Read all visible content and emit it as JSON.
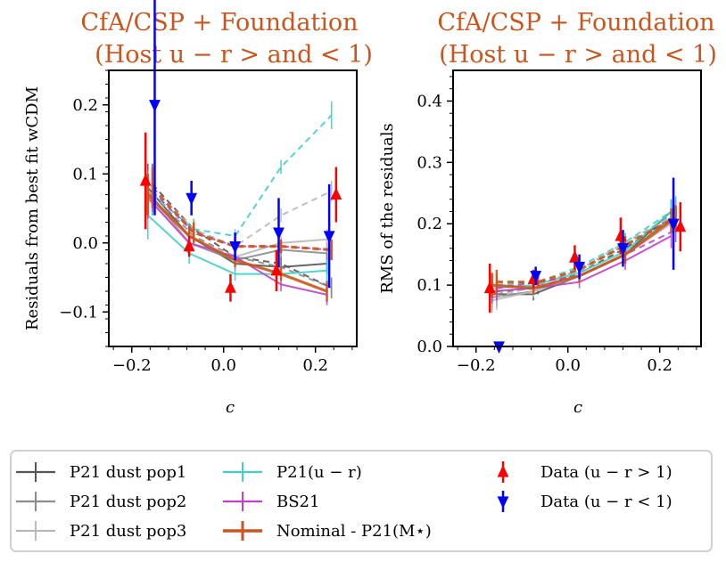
{
  "chart_data": {
    "type": "line",
    "x_categories_label": "c",
    "legend": [
      {
        "key": "pop1",
        "label": "P21 dust pop1",
        "color": "#555555",
        "style": "errorbar-line"
      },
      {
        "key": "pop2",
        "label": "P21 dust pop2",
        "color": "#8c8c8c",
        "style": "errorbar-line"
      },
      {
        "key": "pop3",
        "label": "P21 dust pop3",
        "color": "#b8b8b8",
        "style": "errorbar-line"
      },
      {
        "key": "ur",
        "label": "P21(u − r)",
        "color": "#40d0c8",
        "style": "errorbar-line"
      },
      {
        "key": "bs21",
        "label": "BS21",
        "color": "#c040c8",
        "style": "errorbar-line"
      },
      {
        "key": "nominal",
        "label": "Nominal - P21(M⋆)",
        "color": "#c8561e",
        "style": "errorbar-line-thick"
      },
      {
        "key": "data_red",
        "label": "Data (u − r > 1)",
        "color": "#ff0000",
        "style": "triangle-up"
      },
      {
        "key": "data_blue",
        "label": "Data (u − r < 1)",
        "color": "#0000ff",
        "style": "triangle-down"
      }
    ],
    "panels": [
      {
        "title": [
          "CfA/CSP + Foundation",
          "(Host u − r > and < 1)"
        ],
        "ylabel": "Residuals from best fit wCDM",
        "xlabel": "c",
        "xlim": [
          -0.25,
          0.29
        ],
        "ylim": [
          -0.15,
          0.25
        ],
        "xticks": [
          -0.2,
          0.0,
          0.2
        ],
        "xtick_labels": [
          "−0.2",
          "0.0",
          "0.2"
        ],
        "yticks": [
          -0.1,
          0.0,
          0.1,
          0.2
        ],
        "ytick_labels": [
          "−0.1",
          "0.0",
          "0.1",
          "0.2"
        ],
        "series": [
          {
            "key": "pop1",
            "solid": {
              "x": [
                -0.165,
                -0.075,
                0.025,
                0.125,
                0.225
              ],
              "y": [
                0.08,
                0.01,
                -0.03,
                -0.035,
                -0.03
              ],
              "err": [
                0.035,
                0.015,
                0.01,
                0.01,
                0.015
              ]
            },
            "dashed": {
              "x": [
                -0.155,
                -0.065,
                0.025,
                0.125,
                0.235
              ],
              "y": [
                0.085,
                0.02,
                -0.02,
                -0.03,
                -0.065
              ],
              "err": [
                0.03,
                0.015,
                0.01,
                0.01,
                0.015
              ]
            }
          },
          {
            "key": "pop2",
            "solid": {
              "x": [
                -0.165,
                -0.075,
                0.025,
                0.125,
                0.225
              ],
              "y": [
                0.075,
                0.0,
                -0.025,
                -0.01,
                -0.015
              ],
              "err": [
                0.03,
                0.015,
                0.01,
                0.01,
                0.015
              ]
            },
            "dashed": {
              "x": [
                -0.155,
                -0.065,
                0.025,
                0.125,
                0.235
              ],
              "y": [
                0.07,
                0.01,
                -0.02,
                -0.035,
                -0.065
              ],
              "err": [
                0.03,
                0.015,
                0.01,
                0.01,
                0.015
              ]
            }
          },
          {
            "key": "pop3",
            "solid": {
              "x": [
                -0.165,
                -0.075,
                0.025,
                0.125,
                0.225
              ],
              "y": [
                0.07,
                0.0,
                -0.02,
                0.0,
                0.005
              ],
              "err": [
                0.03,
                0.015,
                0.01,
                0.01,
                0.015
              ]
            },
            "dashed": {
              "x": [
                -0.155,
                -0.065,
                0.025,
                0.125,
                0.235
              ],
              "y": [
                0.08,
                0.02,
                -0.005,
                0.04,
                0.075
              ],
              "err": [
                0.03,
                0.015,
                0.01,
                0.01,
                0.015
              ]
            }
          },
          {
            "key": "ur",
            "solid": {
              "x": [
                -0.165,
                -0.075,
                0.025,
                0.125,
                0.225
              ],
              "y": [
                0.04,
                -0.015,
                -0.045,
                -0.045,
                -0.04
              ],
              "err": [
                0.035,
                0.015,
                0.01,
                0.01,
                0.015
              ]
            },
            "dashed": {
              "x": [
                -0.155,
                -0.065,
                0.025,
                0.125,
                0.235
              ],
              "y": [
                0.07,
                0.02,
                0.01,
                0.11,
                0.185
              ],
              "err": [
                0.03,
                0.015,
                0.01,
                0.01,
                0.02
              ]
            }
          },
          {
            "key": "bs21",
            "solid": {
              "x": [
                -0.165,
                -0.075,
                0.025,
                0.125,
                0.225
              ],
              "y": [
                0.065,
                0.0,
                -0.02,
                -0.06,
                -0.075
              ],
              "err": [
                0.03,
                0.015,
                0.01,
                0.01,
                0.015
              ]
            },
            "dashed": {
              "x": [
                -0.155,
                -0.065,
                0.025,
                0.125,
                0.235
              ],
              "y": [
                0.075,
                0.015,
                -0.005,
                -0.005,
                -0.01
              ],
              "err": [
                0.03,
                0.015,
                0.01,
                0.01,
                0.015
              ]
            }
          },
          {
            "key": "nominal",
            "solid": {
              "x": [
                -0.165,
                -0.075,
                0.025,
                0.125,
                0.225
              ],
              "y": [
                0.07,
                0.01,
                -0.025,
                -0.045,
                -0.07
              ],
              "err": [
                0.03,
                0.015,
                0.01,
                0.01,
                0.015
              ]
            },
            "dashed": {
              "x": [
                -0.155,
                -0.065,
                0.025,
                0.125,
                0.235
              ],
              "y": [
                0.08,
                0.015,
                -0.005,
                -0.005,
                -0.01
              ],
              "err": [
                0.03,
                0.015,
                0.01,
                0.01,
                0.015
              ]
            }
          }
        ],
        "data_red": {
          "x": [
            -0.17,
            -0.075,
            0.015,
            0.115,
            0.245
          ],
          "y": [
            0.09,
            -0.005,
            -0.065,
            -0.04,
            0.07
          ],
          "err": [
            0.07,
            0.015,
            0.02,
            0.03,
            0.04
          ]
        },
        "data_blue": {
          "x": [
            -0.15,
            -0.07,
            0.025,
            0.12,
            0.23
          ],
          "y": [
            0.2,
            0.065,
            -0.005,
            0.015,
            0.01
          ],
          "err": [
            0.16,
            0.025,
            0.02,
            0.05,
            0.075
          ]
        }
      },
      {
        "title": [
          "CfA/CSP + Foundation",
          "(Host u − r > and < 1)"
        ],
        "ylabel": "RMS of the residuals",
        "xlabel": "c",
        "xlim": [
          -0.25,
          0.29
        ],
        "ylim": [
          0.0,
          0.45
        ],
        "xticks": [
          -0.2,
          0.0,
          0.2
        ],
        "xtick_labels": [
          "−0.2",
          "0.0",
          "0.2"
        ],
        "yticks": [
          0.0,
          0.1,
          0.2,
          0.3,
          0.4
        ],
        "ytick_labels": [
          "0.0",
          "0.1",
          "0.2",
          "0.3",
          "0.4"
        ],
        "series": [
          {
            "key": "pop1",
            "solid": {
              "x": [
                -0.165,
                -0.075,
                0.025,
                0.125,
                0.225
              ],
              "y": [
                0.085,
                0.085,
                0.115,
                0.15,
                0.22
              ],
              "err": [
                0.02,
                0.01,
                0.01,
                0.015,
                0.02
              ]
            },
            "dashed": {
              "x": [
                -0.155,
                -0.065,
                0.025,
                0.125,
                0.235
              ],
              "y": [
                0.09,
                0.095,
                0.12,
                0.16,
                0.215
              ],
              "err": [
                0.02,
                0.01,
                0.01,
                0.015,
                0.02
              ]
            }
          },
          {
            "key": "pop2",
            "solid": {
              "x": [
                -0.165,
                -0.075,
                0.025,
                0.125,
                0.225
              ],
              "y": [
                0.08,
                0.09,
                0.115,
                0.15,
                0.21
              ],
              "err": [
                0.02,
                0.01,
                0.01,
                0.015,
                0.02
              ]
            },
            "dashed": {
              "x": [
                -0.155,
                -0.065,
                0.025,
                0.125,
                0.235
              ],
              "y": [
                0.085,
                0.1,
                0.125,
                0.165,
                0.22
              ],
              "err": [
                0.02,
                0.01,
                0.01,
                0.015,
                0.02
              ]
            }
          },
          {
            "key": "pop3",
            "solid": {
              "x": [
                -0.165,
                -0.075,
                0.025,
                0.125,
                0.225
              ],
              "y": [
                0.075,
                0.09,
                0.115,
                0.15,
                0.2
              ],
              "err": [
                0.02,
                0.01,
                0.01,
                0.015,
                0.02
              ]
            },
            "dashed": {
              "x": [
                -0.155,
                -0.065,
                0.025,
                0.125,
                0.235
              ],
              "y": [
                0.08,
                0.1,
                0.125,
                0.17,
                0.215
              ],
              "err": [
                0.02,
                0.01,
                0.01,
                0.015,
                0.02
              ]
            }
          },
          {
            "key": "ur",
            "solid": {
              "x": [
                -0.165,
                -0.075,
                0.025,
                0.125,
                0.225
              ],
              "y": [
                0.095,
                0.1,
                0.12,
                0.155,
                0.22
              ],
              "err": [
                0.02,
                0.01,
                0.01,
                0.015,
                0.02
              ]
            },
            "dashed": {
              "x": [
                -0.155,
                -0.065,
                0.025,
                0.125,
                0.235
              ],
              "y": [
                0.1,
                0.105,
                0.13,
                0.17,
                0.225
              ],
              "err": [
                0.02,
                0.01,
                0.01,
                0.015,
                0.02
              ]
            }
          },
          {
            "key": "bs21",
            "solid": {
              "x": [
                -0.165,
                -0.075,
                0.025,
                0.125,
                0.225
              ],
              "y": [
                0.09,
                0.095,
                0.105,
                0.14,
                0.18
              ],
              "err": [
                0.02,
                0.01,
                0.01,
                0.015,
                0.02
              ]
            },
            "dashed": {
              "x": [
                -0.155,
                -0.065,
                0.025,
                0.125,
                0.235
              ],
              "y": [
                0.095,
                0.105,
                0.115,
                0.15,
                0.19
              ],
              "err": [
                0.02,
                0.01,
                0.01,
                0.015,
                0.02
              ]
            }
          },
          {
            "key": "nominal",
            "solid": {
              "x": [
                -0.165,
                -0.075,
                0.025,
                0.125,
                0.225
              ],
              "y": [
                0.1,
                0.095,
                0.115,
                0.15,
                0.205
              ],
              "err": [
                0.02,
                0.01,
                0.01,
                0.015,
                0.02
              ]
            },
            "dashed": {
              "x": [
                -0.155,
                -0.065,
                0.025,
                0.125,
                0.235
              ],
              "y": [
                0.105,
                0.105,
                0.125,
                0.165,
                0.21
              ],
              "err": [
                0.02,
                0.01,
                0.01,
                0.015,
                0.02
              ]
            }
          }
        ],
        "data_red": {
          "x": [
            -0.17,
            -0.075,
            0.015,
            0.115,
            0.245
          ],
          "y": [
            0.095,
            0.11,
            0.145,
            0.18,
            0.195
          ],
          "err": [
            0.04,
            0.015,
            0.02,
            0.03,
            0.04
          ]
        },
        "data_blue": {
          "x": [
            -0.15,
            -0.07,
            0.025,
            0.12,
            0.23
          ],
          "y": [
            0.0,
            0.115,
            0.13,
            0.16,
            0.2
          ],
          "err": [
            0.0,
            0.015,
            0.02,
            0.03,
            0.075
          ]
        }
      }
    ]
  }
}
